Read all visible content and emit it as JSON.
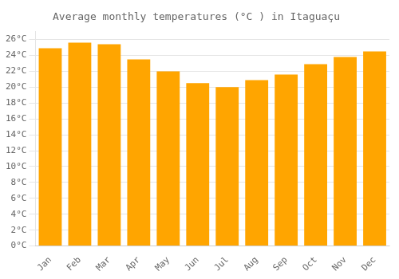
{
  "chart_data": {
    "type": "bar",
    "title": "Average monthly temperatures (°C ) in Itaguaçu",
    "categories": [
      "Jan",
      "Feb",
      "Mar",
      "Apr",
      "May",
      "Jun",
      "Jul",
      "Aug",
      "Sep",
      "Oct",
      "Nov",
      "Dec"
    ],
    "values": [
      24.9,
      25.6,
      25.4,
      23.5,
      22.0,
      20.5,
      20.0,
      20.9,
      21.6,
      22.9,
      23.8,
      24.5
    ],
    "color": "#FFA500",
    "ylim": [
      0,
      27
    ],
    "yticks": [
      {
        "value": 0,
        "label": "0°C"
      },
      {
        "value": 2,
        "label": "2°C"
      },
      {
        "value": 4,
        "label": "4°C"
      },
      {
        "value": 6,
        "label": "6°C"
      },
      {
        "value": 8,
        "label": "8°C"
      },
      {
        "value": 10,
        "label": "10°C"
      },
      {
        "value": 12,
        "label": "12°C"
      },
      {
        "value": 14,
        "label": "14°C"
      },
      {
        "value": 16,
        "label": "16°C"
      },
      {
        "value": 18,
        "label": "18°C"
      },
      {
        "value": 20,
        "label": "20°C"
      },
      {
        "value": 22,
        "label": "22°C"
      },
      {
        "value": 24,
        "label": "24°C"
      },
      {
        "value": 26,
        "label": "26°C"
      }
    ],
    "grid": true
  }
}
